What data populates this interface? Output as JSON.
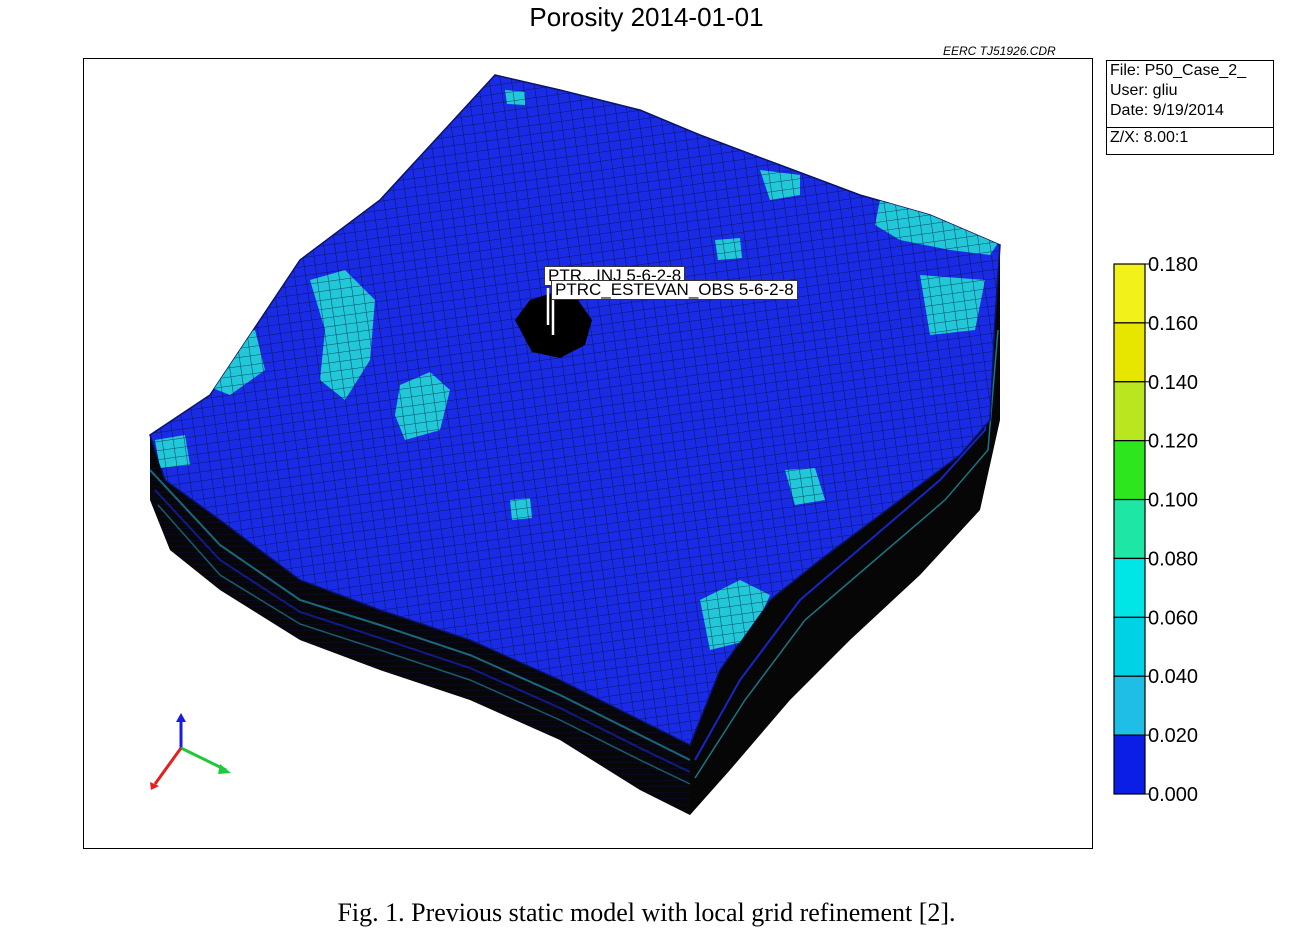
{
  "figure": {
    "title": "Porosity 2014-01-01",
    "credit": "EERC TJ51926.CDR",
    "caption": "Fig. 1. Previous static model with local grid refinement [2]."
  },
  "info": {
    "file": "File: P50_Case_2_",
    "user": "User: gliu",
    "date": "Date: 9/19/2014",
    "zx": "Z/X: 8.00:1"
  },
  "wells": {
    "injector": "PTR...INJ 5-6-2-8",
    "observation": "PTRC_ESTEVAN_OBS 5-6-2-8"
  },
  "colorbar": {
    "ticks": [
      "0.180",
      "0.160",
      "0.140",
      "0.120",
      "0.100",
      "0.080",
      "0.060",
      "0.040",
      "0.020",
      "0.000"
    ],
    "colors": [
      "#ffff00",
      "#f2f21a",
      "#e6e600",
      "#b9e61e",
      "#2de61e",
      "#1ee6a5",
      "#00e6e6",
      "#00d2e6",
      "#1ebee6",
      "#0a1ee6"
    ]
  },
  "palette": {
    "grid_blue": "#1a2be6",
    "cyan_patch": "#22c8d8",
    "side_black": "#050505",
    "side_stripe": "#2ac0d8"
  },
  "axes_icon": {
    "z_color": "#1a1ae6",
    "x_color": "#22c83c",
    "y_color": "#e61e1e"
  }
}
